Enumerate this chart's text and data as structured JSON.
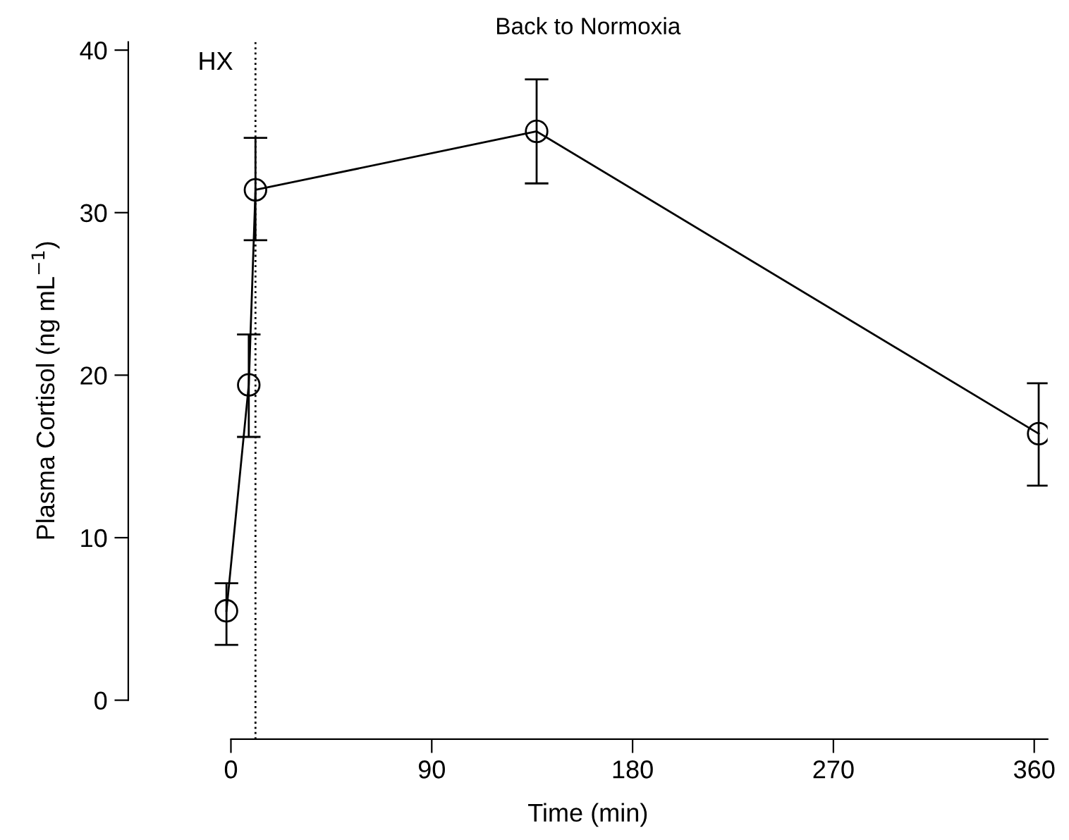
{
  "chart_data": {
    "type": "line",
    "title": "Back to Normoxia",
    "xlabel": "Time (min)",
    "ylabel": "Plasma Cortisol (ng mL$^{−1}$)",
    "x": [
      -2,
      8,
      11,
      137,
      362
    ],
    "series": [
      {
        "color": "#000000",
        "values": [
          5.5,
          19.4,
          31.4,
          35.0,
          16.4
        ],
        "errors": [
          [
            3.4,
            7.2
          ],
          [
            16.2,
            22.5
          ],
          [
            28.3,
            34.6
          ],
          [
            31.8,
            38.2
          ],
          [
            13.2,
            19.5
          ]
        ]
      }
    ],
    "xlim": [
      -46,
      366
    ],
    "ylim": [
      -2.4,
      40.5
    ],
    "xticks": [
      0,
      90,
      180,
      270,
      360
    ],
    "yticks": [
      0,
      10,
      20,
      30,
      40
    ],
    "ref_lines": [
      {
        "axis": "x",
        "value": 11,
        "label": "HX",
        "line_style": "dotted",
        "color": "#000000"
      }
    ],
    "marker": "circle",
    "line_style": "solid",
    "grid": false,
    "legend": false
  }
}
